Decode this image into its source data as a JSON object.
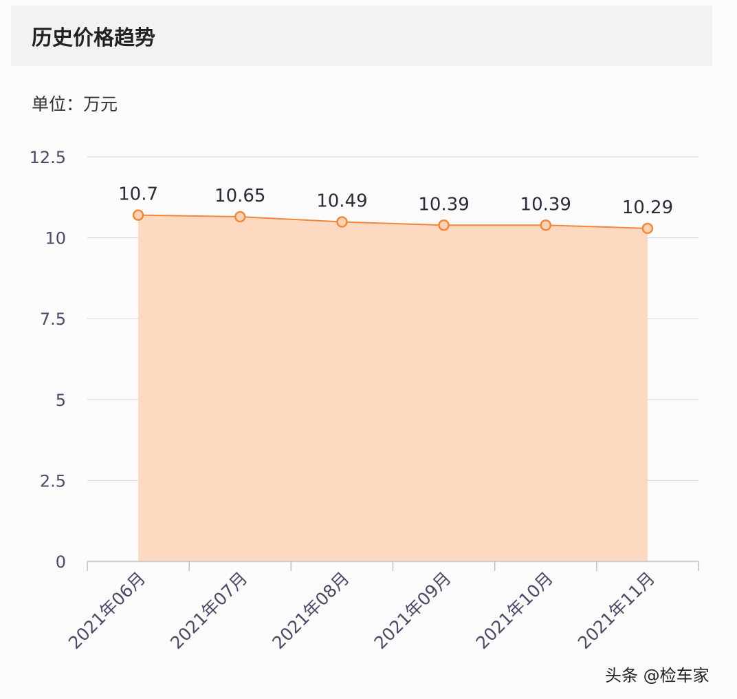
{
  "header": {
    "title": "历史价格趋势"
  },
  "unit_label": "单位：万元",
  "watermark": "头条 @检车家",
  "colors": {
    "line": "#f0873a",
    "area": "#fdd9c2",
    "point_fill": "#fbd2b4",
    "grid": "#d3d6de",
    "axis_text": "#4a4a66"
  },
  "chart_data": {
    "type": "area",
    "title": "历史价格趋势",
    "ylabel": "单位：万元",
    "categories": [
      "2021年06月",
      "2021年07月",
      "2021年08月",
      "2021年09月",
      "2021年10月",
      "2021年11月"
    ],
    "series": [
      {
        "values": [
          10.7,
          10.65,
          10.49,
          10.39,
          10.39,
          10.29
        ]
      }
    ],
    "data_labels": [
      "10.7",
      "10.65",
      "10.49",
      "10.39",
      "10.39",
      "10.29"
    ],
    "ylim": [
      0,
      12.5
    ],
    "yticks": [
      0,
      2.5,
      5,
      7.5,
      10,
      12.5
    ],
    "ytick_labels": [
      "0",
      "2.5",
      "5",
      "7.5",
      "10",
      "12.5"
    ],
    "grid": true,
    "legend": "none"
  }
}
